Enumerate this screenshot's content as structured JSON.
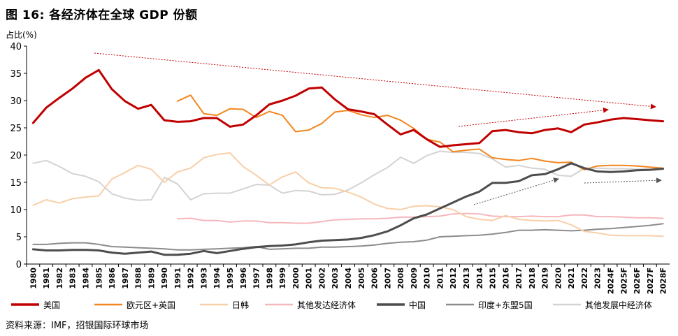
{
  "figure_title": "图 16: 各经济体在全球 GDP 份额",
  "source": "资料来源：IMF，招银国际环球市场",
  "chart_data": {
    "type": "line",
    "title": "图 16: 各经济体在全球 GDP 份额",
    "ylabel": "占比(%)",
    "xlabel": "",
    "ylim": [
      0,
      40
    ],
    "yticks": [
      0,
      5,
      10,
      15,
      20,
      25,
      30,
      35,
      40
    ],
    "grid": false,
    "legend_position": "bottom",
    "categories": [
      "1980",
      "1981",
      "1982",
      "1983",
      "1984",
      "1985",
      "1986",
      "1987",
      "1988",
      "1989",
      "1990",
      "1991",
      "1992",
      "1993",
      "1994",
      "1995",
      "1996",
      "1997",
      "1998",
      "1999",
      "2000",
      "2001",
      "2002",
      "2003",
      "2004",
      "2005",
      "2006",
      "2007",
      "2008",
      "2009",
      "2010",
      "2011",
      "2012",
      "2013",
      "2014",
      "2015",
      "2016",
      "2017",
      "2018",
      "2019",
      "2020",
      "2021",
      "2022",
      "2023",
      "2024F",
      "2025F",
      "2026F",
      "2027F",
      "2028F"
    ],
    "series": [
      {
        "name": "美国",
        "color": "#c00000",
        "width": 3,
        "values": [
          25.9,
          28.7,
          30.5,
          32.2,
          34.2,
          35.6,
          32.1,
          29.9,
          28.5,
          29.2,
          26.4,
          26.1,
          26.2,
          26.8,
          26.8,
          25.2,
          25.6,
          27.3,
          29.3,
          30.0,
          30.9,
          32.2,
          32.4,
          30.2,
          28.4,
          28.0,
          27.5,
          25.6,
          23.8,
          24.6,
          22.9,
          21.5,
          21.8,
          22.0,
          22.2,
          24.4,
          24.6,
          24.2,
          24.0,
          24.6,
          24.9,
          24.2,
          25.6,
          26.0,
          26.5,
          26.8,
          26.6,
          26.4,
          26.2
        ]
      },
      {
        "name": "欧元区+英国",
        "color": "#f2861f",
        "width": 2,
        "values": [
          null,
          null,
          null,
          null,
          null,
          null,
          null,
          null,
          null,
          null,
          null,
          29.9,
          31.0,
          27.6,
          27.3,
          28.5,
          28.4,
          26.9,
          28.0,
          27.3,
          24.3,
          24.6,
          25.8,
          27.9,
          28.2,
          27.4,
          26.9,
          27.3,
          26.4,
          24.9,
          22.9,
          22.4,
          20.6,
          20.9,
          21.1,
          19.5,
          19.2,
          19.0,
          19.4,
          18.9,
          18.6,
          18.7,
          17.3,
          18.0,
          18.1,
          18.1,
          18.0,
          17.8,
          17.6
        ]
      },
      {
        "name": "日韩",
        "color": "#f8cfa8",
        "width": 2,
        "values": [
          10.8,
          11.8,
          11.2,
          12.0,
          12.3,
          12.5,
          15.6,
          16.8,
          18.1,
          17.4,
          15.0,
          16.9,
          17.6,
          19.5,
          20.1,
          20.4,
          17.9,
          16.3,
          14.5,
          16.0,
          16.9,
          14.9,
          14.0,
          13.9,
          13.2,
          12.3,
          11.0,
          10.2,
          10.0,
          10.6,
          10.7,
          10.5,
          10.0,
          8.7,
          8.2,
          8.0,
          8.9,
          8.2,
          8.0,
          7.9,
          8.0,
          7.2,
          6.0,
          5.7,
          5.3,
          5.2,
          5.2,
          5.2,
          5.1
        ]
      },
      {
        "name": "其他发达经济体",
        "color": "#f6b7bd",
        "width": 2,
        "values": [
          null,
          null,
          null,
          null,
          null,
          null,
          null,
          null,
          null,
          null,
          null,
          8.3,
          8.4,
          8.0,
          8.0,
          7.7,
          7.9,
          7.9,
          7.6,
          7.6,
          7.5,
          7.5,
          7.8,
          8.1,
          8.2,
          8.3,
          8.3,
          8.4,
          8.6,
          8.6,
          8.7,
          8.8,
          9.2,
          9.3,
          9.2,
          8.8,
          8.7,
          8.7,
          8.8,
          8.7,
          8.7,
          9.0,
          9.0,
          8.7,
          8.7,
          8.6,
          8.5,
          8.5,
          8.4
        ]
      },
      {
        "name": "中国",
        "color": "#4d4d4d",
        "width": 3,
        "values": [
          2.7,
          2.5,
          2.5,
          2.6,
          2.6,
          2.5,
          2.1,
          1.9,
          2.1,
          2.3,
          1.7,
          1.7,
          1.9,
          2.4,
          2.0,
          2.4,
          2.8,
          3.1,
          3.3,
          3.4,
          3.6,
          4.0,
          4.3,
          4.4,
          4.5,
          4.8,
          5.3,
          6.0,
          7.1,
          8.4,
          9.1,
          10.2,
          11.3,
          12.4,
          13.3,
          14.9,
          14.9,
          15.2,
          16.3,
          16.5,
          17.4,
          18.5,
          17.6,
          17.0,
          16.9,
          17.0,
          17.2,
          17.3,
          17.5
        ]
      },
      {
        "name": "印度+东盟5国",
        "color": "#8c8c8c",
        "width": 2,
        "values": [
          3.6,
          3.6,
          3.8,
          3.9,
          3.9,
          3.6,
          3.2,
          3.1,
          3.0,
          2.9,
          2.8,
          2.6,
          2.6,
          2.7,
          2.8,
          2.9,
          3.0,
          3.2,
          2.7,
          2.8,
          2.9,
          2.9,
          3.1,
          3.1,
          3.2,
          3.3,
          3.5,
          3.8,
          4.0,
          4.1,
          4.4,
          5.0,
          5.1,
          5.2,
          5.3,
          5.5,
          5.8,
          6.2,
          6.2,
          6.3,
          6.2,
          6.1,
          6.2,
          6.4,
          6.5,
          6.7,
          6.9,
          7.1,
          7.4
        ]
      },
      {
        "name": "其他发展中经济体",
        "color": "#d3d3d3",
        "width": 2,
        "values": [
          18.5,
          19.0,
          17.9,
          16.6,
          16.1,
          15.1,
          12.9,
          12.1,
          11.7,
          11.8,
          15.9,
          14.7,
          11.8,
          12.9,
          13.0,
          13.0,
          13.8,
          14.6,
          14.5,
          13.0,
          13.5,
          13.4,
          12.7,
          12.8,
          13.6,
          14.9,
          16.4,
          17.7,
          19.6,
          18.5,
          19.9,
          20.7,
          20.5,
          20.5,
          20.3,
          19.3,
          17.8,
          18.1,
          17.6,
          17.4,
          16.3,
          16.1,
          17.6,
          17.6,
          17.5,
          17.5,
          17.4,
          17.4,
          17.4
        ]
      }
    ]
  }
}
